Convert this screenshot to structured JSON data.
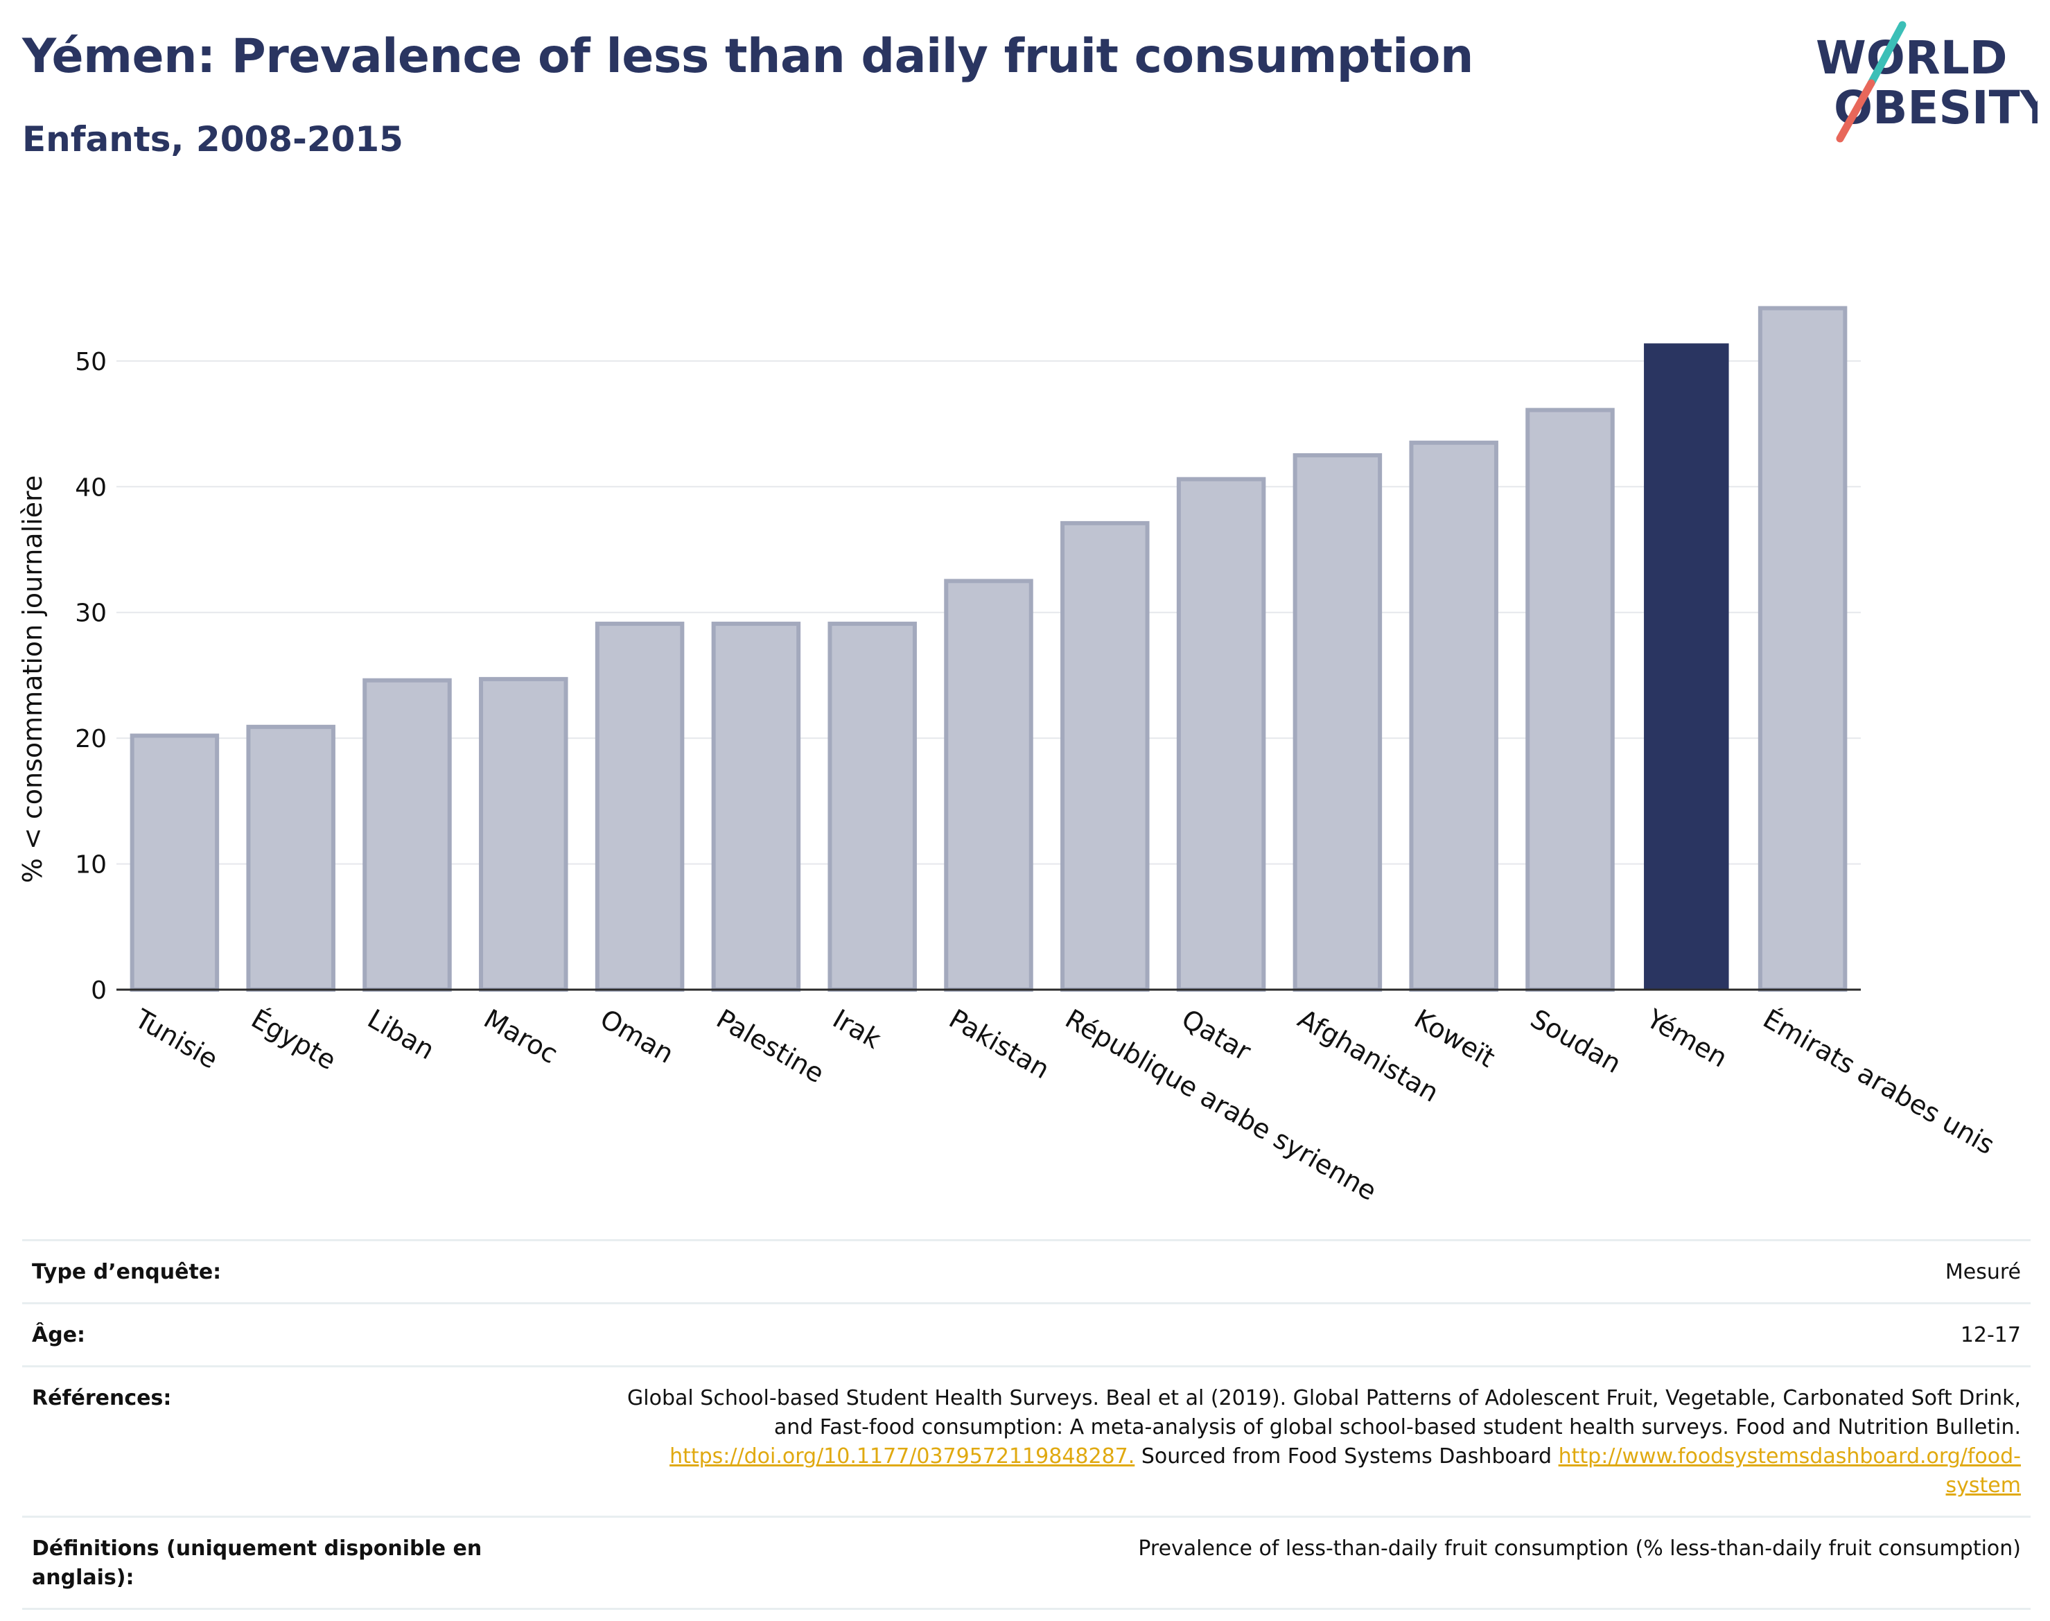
{
  "header": {
    "title": "Yémen: Prevalence of less than daily fruit consumption",
    "subtitle": "Enfants, 2008-2015"
  },
  "logo": {
    "line1": "WORLD",
    "line2": "OBESITY"
  },
  "colors": {
    "title": "#2a3561",
    "highlight_bar": "#2a3561",
    "other_bar_fill": "#bfc3d1",
    "other_bar_stroke": "#a3a9bd",
    "gridline": "#e6e8ec",
    "link": "#e0a910",
    "logo_slash_teal": "#3bbfb7",
    "logo_slash_red": "#e8675a"
  },
  "chart_data": {
    "type": "bar",
    "categories": [
      "Tunisie",
      "Égypte",
      "Liban",
      "Maroc",
      "Oman",
      "Palestine",
      "Irak",
      "Pakistan",
      "République arabe syrienne",
      "Qatar",
      "Afghanistan",
      "Koweït",
      "Soudan",
      "Yémen",
      "Émirats arabes unis"
    ],
    "values": [
      20.2,
      20.9,
      24.6,
      24.7,
      29.1,
      29.1,
      29.1,
      32.5,
      37.1,
      40.6,
      42.5,
      43.5,
      46.1,
      51.4,
      54.2
    ],
    "highlight": "Yémen",
    "title": "Yémen: Prevalence of less than daily fruit consumption",
    "subtitle": "Enfants, 2008-2015",
    "xlabel": "",
    "ylabel": "% < consommation journalière",
    "ylim": [
      0,
      56
    ],
    "yticks": [
      0,
      10,
      20,
      30,
      40,
      50
    ],
    "grid": true,
    "legend": "none"
  },
  "meta": {
    "rows": [
      {
        "label": "Type d’enquête:",
        "value": "Mesuré"
      },
      {
        "label": "Âge:",
        "value": "12-17"
      }
    ],
    "references": {
      "label": "Références:",
      "text1": "Global School-based Student Health Surveys. Beal et al (2019). Global Patterns of Adolescent Fruit, Vegetable, Carbonated Soft Drink,",
      "text2": "and Fast-food consumption: A meta-analysis of global school-based student health surveys. Food and Nutrition Bulletin.",
      "link1": "https://doi.org/10.1177/0379572119848287.",
      "text3": " Sourced from Food Systems Dashboard ",
      "link2a": "http://www.foodsystemsdashboard.org/food-",
      "link2b": "system"
    },
    "definitions": {
      "label_line1": "Définitions (uniquement disponible en",
      "label_line2": "anglais):",
      "value": "Prevalence of less-than-daily fruit consumption (% less-than-daily fruit consumption)"
    }
  }
}
